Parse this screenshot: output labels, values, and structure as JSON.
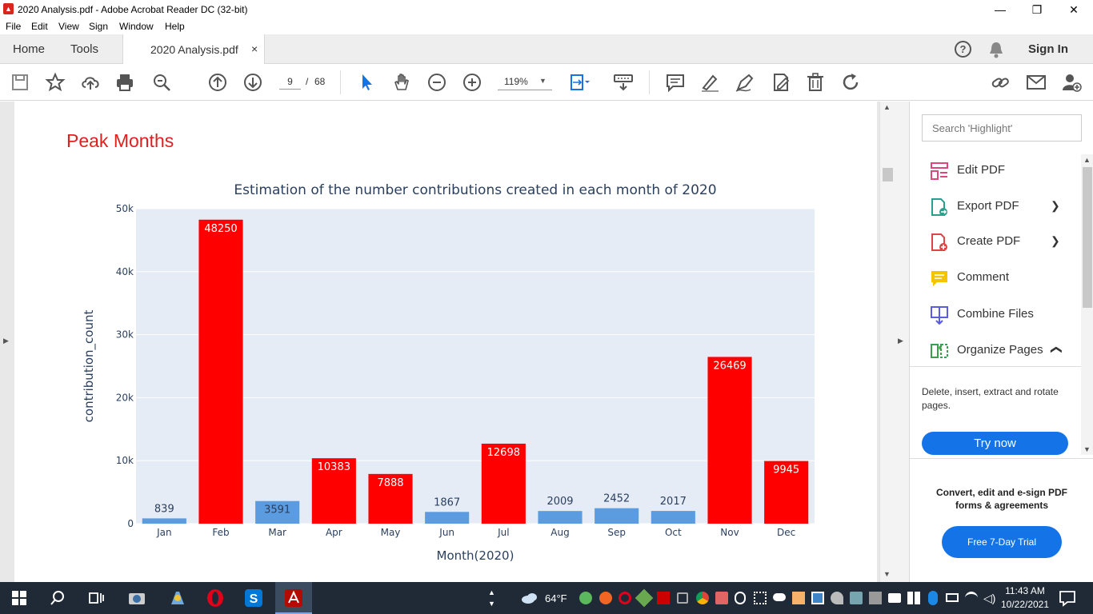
{
  "window": {
    "title": "2020 Analysis.pdf - Adobe Acrobat Reader DC (32-bit)",
    "minimize": "—",
    "restore": "❐",
    "close": "✕"
  },
  "menu": [
    "File",
    "Edit",
    "View",
    "Sign",
    "Window",
    "Help"
  ],
  "tabs": {
    "home": "Home",
    "tools": "Tools",
    "document": "2020 Analysis.pdf",
    "close": "×",
    "help": "?",
    "sign_in": "Sign In"
  },
  "toolbar": {
    "page_current": "9",
    "page_sep": "/",
    "page_total": "68",
    "zoom": "119%",
    "icons": [
      "save-icon",
      "bookmark-star-icon",
      "upload-icon",
      "print-icon",
      "search-zoom-icon",
      "page-up-icon",
      "page-down-icon",
      "select-cursor-icon",
      "hand-icon",
      "zoom-out-icon",
      "zoom-in-icon",
      "fit-page-icon",
      "scroll-mode-icon",
      "comment-icon",
      "highlight-pen-icon",
      "draw-icon",
      "edit-doc-icon",
      "delete-icon",
      "rotate-icon",
      "share-link-icon",
      "mail-icon",
      "add-user-icon"
    ]
  },
  "document": {
    "heading": "Peak Months"
  },
  "chart_data": {
    "type": "bar",
    "title": "Estimation of the number contributions created in each month of 2020",
    "xlabel": "Month(2020)",
    "ylabel": "contribution_count",
    "ylim": [
      0,
      50000
    ],
    "yticks": [
      0,
      10000,
      20000,
      30000,
      40000,
      50000
    ],
    "ytick_labels": [
      "0",
      "10k",
      "20k",
      "30k",
      "40k",
      "50k"
    ],
    "grid": true,
    "categories": [
      "Jan",
      "Feb",
      "Mar",
      "Apr",
      "May",
      "Jun",
      "Jul",
      "Aug",
      "Sep",
      "Oct",
      "Nov",
      "Dec"
    ],
    "values": [
      839,
      48250,
      3591,
      10383,
      7888,
      1867,
      12698,
      2009,
      2452,
      2017,
      26469,
      9945
    ],
    "bar_colors": [
      "#5b9be0",
      "#ff0000",
      "#5b9be0",
      "#ff0000",
      "#ff0000",
      "#5b9be0",
      "#ff0000",
      "#5b9be0",
      "#5b9be0",
      "#5b9be0",
      "#ff0000",
      "#ff0000"
    ],
    "plot_background": "#e5ecf6"
  },
  "right_panel": {
    "search_placeholder": "Search 'Highlight'",
    "tools": [
      {
        "label": "Edit PDF",
        "icon": "edit-pdf-icon",
        "color": "#e0457b"
      },
      {
        "label": "Export PDF",
        "icon": "export-pdf-icon",
        "color": "#2b9f8e"
      },
      {
        "label": "Create PDF",
        "icon": "create-pdf-icon",
        "color": "#e04545"
      },
      {
        "label": "Comment",
        "icon": "comment-icon",
        "color": "#f5c400"
      },
      {
        "label": "Combine Files",
        "icon": "combine-files-icon",
        "color": "#5c5ce0"
      },
      {
        "label": "Organize Pages",
        "icon": "organize-pages-icon",
        "color": "#3aa04a"
      }
    ],
    "organize_desc": "Delete, insert, extract and rotate pages.",
    "try_now": "Try now",
    "promo": "Convert, edit and e-sign PDF forms & agreements",
    "trial": "Free 7-Day Trial"
  },
  "taskbar": {
    "weather": "64°F",
    "time": "11:43 AM",
    "date": "10/22/2021"
  }
}
